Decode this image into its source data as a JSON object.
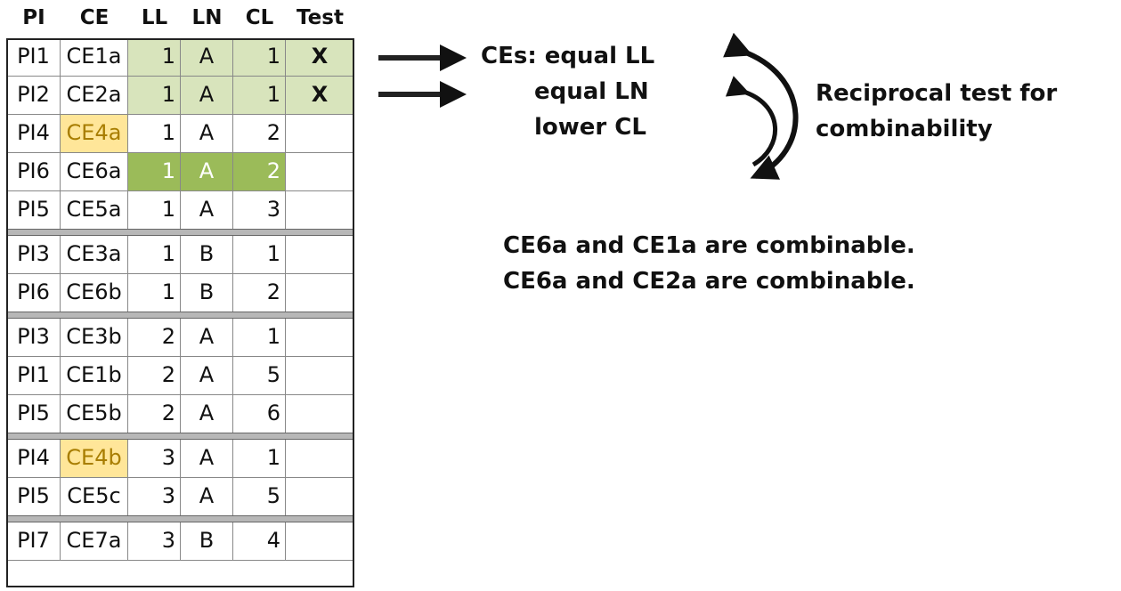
{
  "headers": {
    "pi": "PI",
    "ce": "CE",
    "ll": "LL",
    "ln": "LN",
    "cl": "CL",
    "test": "Test"
  },
  "rows": [
    {
      "pi": "PI1",
      "ce": "CE1a",
      "ll": "1",
      "ln": "A",
      "cl": "1",
      "test": "X",
      "highlight": "lightgreen"
    },
    {
      "pi": "PI2",
      "ce": "CE2a",
      "ll": "1",
      "ln": "A",
      "cl": "1",
      "test": "X",
      "highlight": "lightgreen"
    },
    {
      "pi": "PI4",
      "ce": "CE4a",
      "ll": "1",
      "ln": "A",
      "cl": "2",
      "test": "",
      "ce_highlight": "yellow"
    },
    {
      "pi": "PI6",
      "ce": "CE6a",
      "ll": "1",
      "ln": "A",
      "cl": "2",
      "test": "",
      "highlight": "darkgreen"
    },
    {
      "pi": "PI5",
      "ce": "CE5a",
      "ll": "1",
      "ln": "A",
      "cl": "3",
      "test": "",
      "separator_after": true
    },
    {
      "pi": "PI3",
      "ce": "CE3a",
      "ll": "1",
      "ln": "B",
      "cl": "1",
      "test": ""
    },
    {
      "pi": "PI6",
      "ce": "CE6b",
      "ll": "1",
      "ln": "B",
      "cl": "2",
      "test": "",
      "separator_after": true
    },
    {
      "pi": "PI3",
      "ce": "CE3b",
      "ll": "2",
      "ln": "A",
      "cl": "1",
      "test": ""
    },
    {
      "pi": "PI1",
      "ce": "CE1b",
      "ll": "2",
      "ln": "A",
      "cl": "5",
      "test": ""
    },
    {
      "pi": "PI5",
      "ce": "CE5b",
      "ll": "2",
      "ln": "A",
      "cl": "6",
      "test": "",
      "separator_after": true
    },
    {
      "pi": "PI4",
      "ce": "CE4b",
      "ll": "3",
      "ln": "A",
      "cl": "1",
      "test": "",
      "ce_highlight": "yellow"
    },
    {
      "pi": "PI5",
      "ce": "CE5c",
      "ll": "3",
      "ln": "A",
      "cl": "5",
      "test": "",
      "separator_after": true
    },
    {
      "pi": "PI7",
      "ce": "CE7a",
      "ll": "3",
      "ln": "B",
      "cl": "4",
      "test": ""
    }
  ],
  "colors": {
    "lightgreen": "#d8e4bc",
    "darkgreen": "#9bbb59",
    "yellow": "#ffe699",
    "yellow_text": "#a87d00"
  },
  "annotations": {
    "ces_line1": "CEs: equal LL",
    "ces_line2": "equal LN",
    "ces_line3": "lower CL",
    "reciprocal_line1": "Reciprocal test for",
    "reciprocal_line2": "combinability",
    "conclusion1": "CE6a and CE1a are combinable.",
    "conclusion2": "CE6a and CE2a are combinable."
  }
}
